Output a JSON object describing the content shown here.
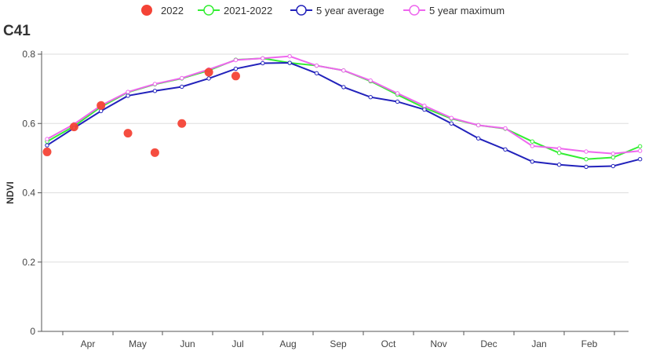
{
  "chart_data": {
    "type": "line",
    "title": "C41",
    "xlabel": "",
    "ylabel": "NDVI",
    "ylim": [
      0,
      0.8
    ],
    "yticks": [
      "0",
      "0.2",
      "0.4",
      "0.6",
      "0.8"
    ],
    "yticks_values": [
      0,
      0.2,
      0.4,
      0.6,
      0.8
    ],
    "xtick_labels": [
      "Apr",
      "May",
      "Jun",
      "Jul",
      "Aug",
      "Sep",
      "Oct",
      "Nov",
      "Dec",
      "Jan",
      "Feb"
    ],
    "grid": "horizontal",
    "legend_position": "top-center",
    "series": [
      {
        "name": "2022",
        "kind": "scatter",
        "color": "#f44336",
        "values": [
          0.518,
          0.59,
          0.652,
          0.572,
          0.516,
          0.6,
          0.748,
          0.737
        ]
      },
      {
        "name": "2021-2022",
        "kind": "line",
        "color": "#33ee33",
        "values": [
          0.548,
          0.592,
          0.648,
          0.69,
          0.713,
          0.73,
          0.753,
          0.784,
          0.788,
          0.775,
          0.767,
          0.753,
          0.722,
          0.683,
          0.645,
          0.614,
          0.595,
          0.585,
          0.548,
          0.515,
          0.497,
          0.502,
          0.534
        ]
      },
      {
        "name": "5 year average",
        "kind": "line",
        "color": "#2222bb",
        "values": [
          0.537,
          0.587,
          0.636,
          0.68,
          0.694,
          0.706,
          0.73,
          0.758,
          0.774,
          0.775,
          0.745,
          0.705,
          0.676,
          0.663,
          0.64,
          0.6,
          0.557,
          0.525,
          0.49,
          0.481,
          0.475,
          0.477,
          0.497
        ]
      },
      {
        "name": "5 year maximum",
        "kind": "line",
        "color": "#ee66ee",
        "values": [
          0.555,
          0.598,
          0.652,
          0.691,
          0.714,
          0.731,
          0.756,
          0.783,
          0.788,
          0.794,
          0.767,
          0.753,
          0.724,
          0.687,
          0.651,
          0.616,
          0.595,
          0.586,
          0.535,
          0.528,
          0.519,
          0.513,
          0.521
        ]
      }
    ]
  }
}
